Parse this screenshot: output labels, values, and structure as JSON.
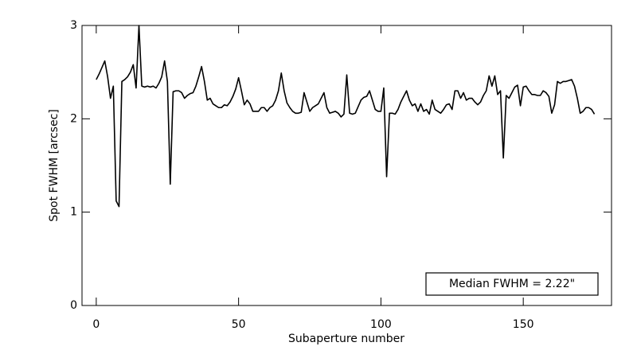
{
  "chart_data": {
    "type": "line",
    "xlabel": "Subaperture number",
    "ylabel": "Spot FWHM [arcsec]",
    "annotation": "Median FWHM = 2.22\"",
    "xlim": [
      -5,
      181
    ],
    "xticks": [
      0,
      50,
      100,
      150
    ],
    "ylim": [
      0,
      3
    ],
    "yticks": [
      0,
      1,
      2,
      3
    ],
    "x": [
      0,
      1,
      2,
      3,
      4,
      5,
      6,
      7,
      8,
      9,
      10,
      11,
      12,
      13,
      14,
      15,
      16,
      17,
      18,
      19,
      20,
      21,
      22,
      23,
      24,
      25,
      26,
      27,
      28,
      29,
      30,
      31,
      32,
      33,
      34,
      35,
      36,
      37,
      38,
      39,
      40,
      41,
      42,
      43,
      44,
      45,
      46,
      47,
      48,
      49,
      50,
      51,
      52,
      53,
      54,
      55,
      56,
      57,
      58,
      59,
      60,
      61,
      62,
      63,
      64,
      65,
      66,
      67,
      68,
      69,
      70,
      71,
      72,
      73,
      74,
      75,
      76,
      77,
      78,
      79,
      80,
      81,
      82,
      83,
      84,
      85,
      86,
      87,
      88,
      89,
      90,
      91,
      92,
      93,
      94,
      95,
      96,
      97,
      98,
      99,
      100,
      101,
      102,
      103,
      104,
      105,
      106,
      107,
      108,
      109,
      110,
      111,
      112,
      113,
      114,
      115,
      116,
      117,
      118,
      119,
      120,
      121,
      122,
      123,
      124,
      125,
      126,
      127,
      128,
      129,
      130,
      131,
      132,
      133,
      134,
      135,
      136,
      137,
      138,
      139,
      140,
      141,
      142,
      143,
      144,
      145,
      146,
      147,
      148,
      149,
      150,
      151,
      152,
      153,
      154,
      155,
      156,
      157,
      158,
      159,
      160,
      161,
      162,
      163,
      164,
      165,
      166,
      167,
      168,
      169,
      170,
      171,
      172,
      173,
      174,
      175
    ],
    "series": [
      {
        "name": "FWHM",
        "color": "#000000",
        "values": [
          2.42,
          2.48,
          2.55,
          2.62,
          2.45,
          2.22,
          2.35,
          1.12,
          1.06,
          2.4,
          2.42,
          2.45,
          2.5,
          2.58,
          2.33,
          3.0,
          2.35,
          2.34,
          2.35,
          2.34,
          2.35,
          2.33,
          2.38,
          2.45,
          2.62,
          2.4,
          1.3,
          2.29,
          2.3,
          2.3,
          2.28,
          2.22,
          2.25,
          2.27,
          2.28,
          2.35,
          2.45,
          2.56,
          2.4,
          2.2,
          2.22,
          2.16,
          2.14,
          2.12,
          2.12,
          2.15,
          2.14,
          2.18,
          2.24,
          2.32,
          2.44,
          2.3,
          2.15,
          2.2,
          2.16,
          2.08,
          2.08,
          2.08,
          2.12,
          2.12,
          2.08,
          2.12,
          2.14,
          2.2,
          2.3,
          2.49,
          2.3,
          2.17,
          2.12,
          2.08,
          2.06,
          2.06,
          2.07,
          2.28,
          2.18,
          2.08,
          2.12,
          2.14,
          2.16,
          2.22,
          2.28,
          2.12,
          2.06,
          2.07,
          2.08,
          2.06,
          2.02,
          2.05,
          2.47,
          2.06,
          2.05,
          2.06,
          2.13,
          2.2,
          2.23,
          2.24,
          2.3,
          2.2,
          2.1,
          2.08,
          2.08,
          2.33,
          1.38,
          2.06,
          2.06,
          2.05,
          2.1,
          2.18,
          2.24,
          2.3,
          2.2,
          2.14,
          2.16,
          2.08,
          2.16,
          2.08,
          2.1,
          2.05,
          2.2,
          2.1,
          2.08,
          2.06,
          2.1,
          2.15,
          2.16,
          2.1,
          2.3,
          2.3,
          2.22,
          2.28,
          2.2,
          2.22,
          2.22,
          2.18,
          2.15,
          2.18,
          2.25,
          2.3,
          2.46,
          2.35,
          2.46,
          2.26,
          2.3,
          1.58,
          2.25,
          2.22,
          2.28,
          2.34,
          2.36,
          2.14,
          2.34,
          2.35,
          2.3,
          2.26,
          2.26,
          2.25,
          2.25,
          2.3,
          2.28,
          2.24,
          2.06,
          2.15,
          2.4,
          2.38,
          2.4,
          2.4,
          2.41,
          2.42,
          2.35,
          2.22,
          2.06,
          2.08,
          2.12,
          2.12,
          2.1,
          2.05
        ]
      }
    ]
  }
}
